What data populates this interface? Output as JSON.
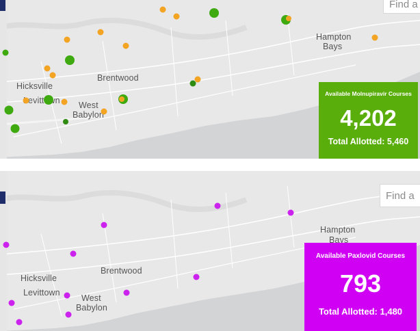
{
  "colors": {
    "map_land": "#e8e8e8",
    "map_water": "#d2d4d6",
    "map_roads": "#ffffff",
    "molnupiravir_card": "#5aae0b",
    "paxlovid_card": "#d000f4",
    "marker_green": "#3eaa10",
    "marker_orange": "#f2a422",
    "marker_purple": "#cc22ee"
  },
  "top_panel": {
    "search_text": "Find a",
    "place_labels": {
      "hicksville": "Hicksville",
      "levittown": "Levittown",
      "brentwood": "Brentwood",
      "west": "West",
      "babylon": "Babylon",
      "hampton": "Hampton",
      "bays": "Bays"
    },
    "card": {
      "title": "Available Molnupiravir Courses",
      "value": "4,202",
      "subtitle": "Total Allotted: 5,460"
    }
  },
  "bottom_panel": {
    "search_text": "Find a",
    "place_labels": {
      "hicksville": "Hicksville",
      "levittown": "Levittown",
      "brentwood": "Brentwood",
      "west": "West",
      "babylon": "Babylon",
      "hampton": "Hampton",
      "bays": "Bays"
    },
    "card": {
      "title": "Available Paxlovid Courses",
      "value": "793",
      "subtitle": "Total Allotted: 1,480"
    }
  },
  "marker_legend_icons": [
    "pharmacy-location-marker"
  ]
}
